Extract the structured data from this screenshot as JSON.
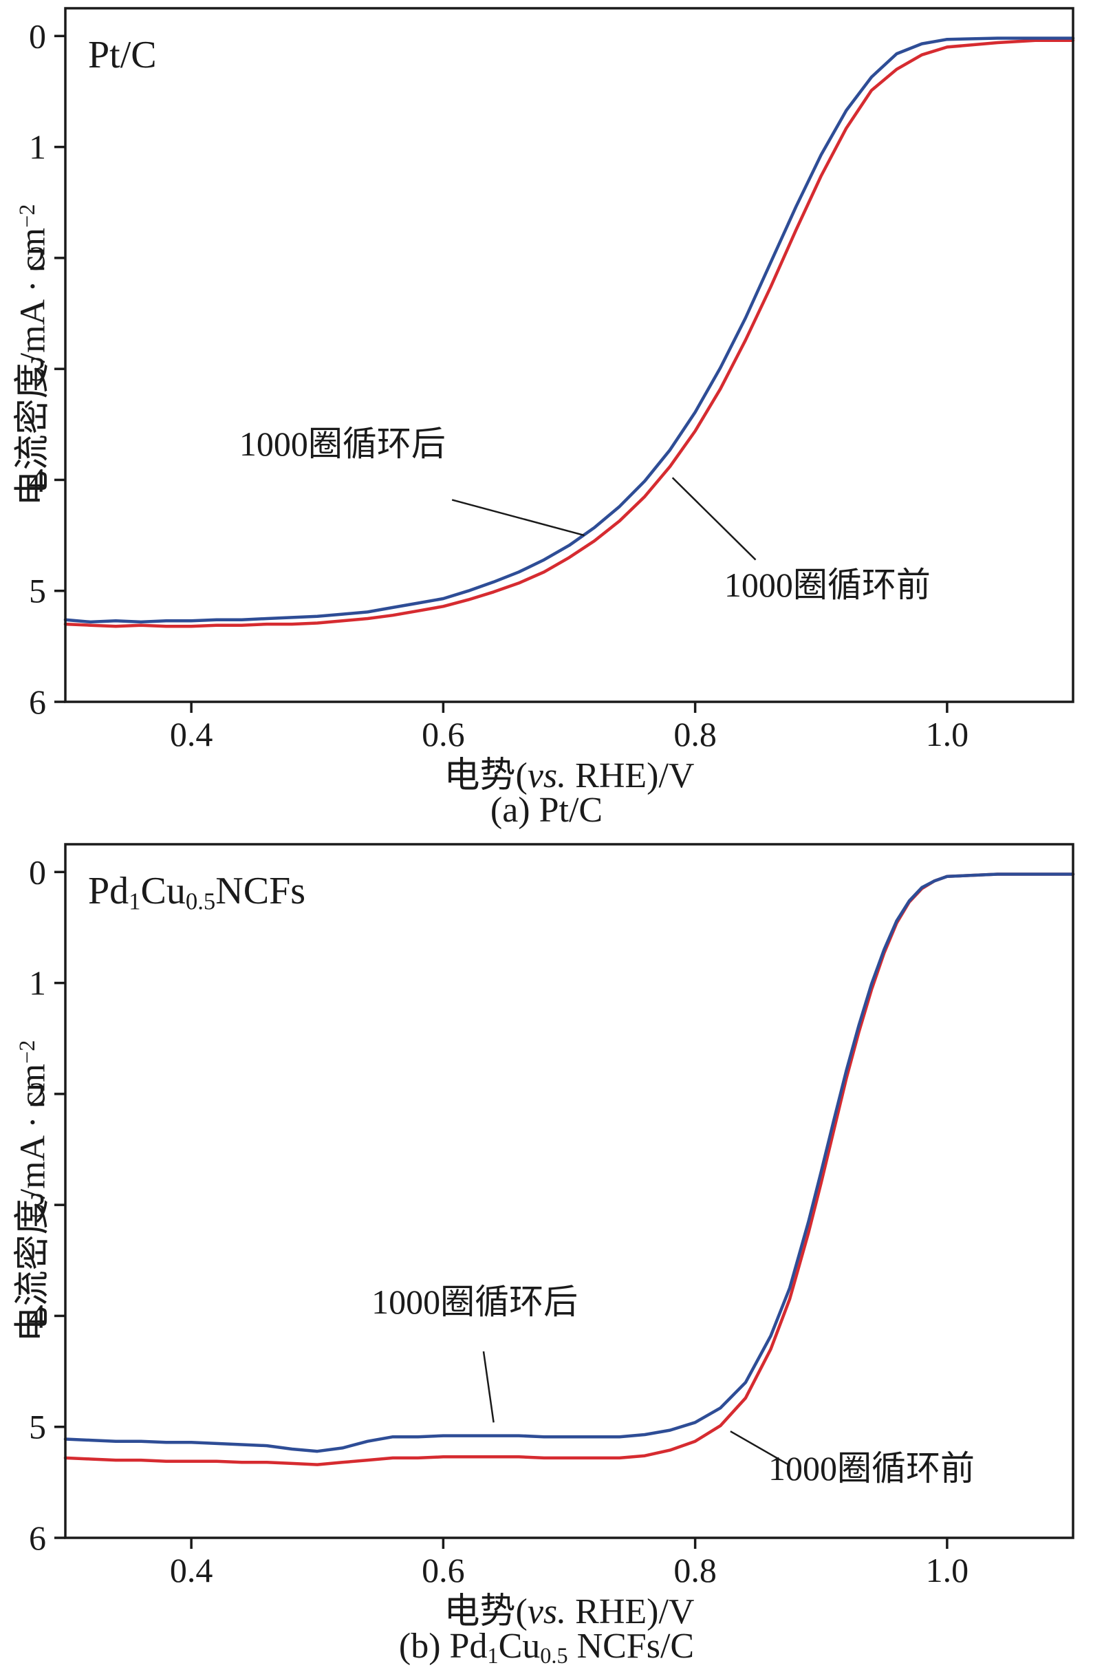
{
  "page": {
    "background": "#ffffff",
    "axis_color": "#1a1a1a"
  },
  "chart_data": [
    {
      "type": "line",
      "key": "pt-c",
      "panel_label": [
        {
          "t": "Pt/C"
        }
      ],
      "caption": [
        {
          "t": "(a) Pt/C"
        }
      ],
      "xlabel": [
        {
          "t": "电势("
        },
        {
          "t": "vs.",
          "italic": true
        },
        {
          "t": " RHE)/V"
        }
      ],
      "ylabel": [
        {
          "t": "电流密度/mA · cm"
        },
        {
          "t": "−2",
          "sup": true
        }
      ],
      "xlim": [
        0.3,
        1.1
      ],
      "ylim": [
        -0.25,
        6.0
      ],
      "y_inverted": true,
      "grid": false,
      "axis_color": "#1a1a1a",
      "xticks": [
        {
          "v": 0.4,
          "label": "0.4"
        },
        {
          "v": 0.6,
          "label": "0.6"
        },
        {
          "v": 0.8,
          "label": "0.8"
        },
        {
          "v": 1.0,
          "label": "1.0"
        }
      ],
      "yticks": [
        {
          "v": 0,
          "label": "0"
        },
        {
          "v": 1,
          "label": "1"
        },
        {
          "v": 2,
          "label": "2"
        },
        {
          "v": 3,
          "label": "3"
        },
        {
          "v": 4,
          "label": "4"
        },
        {
          "v": 5,
          "label": "5"
        },
        {
          "v": 6,
          "label": "6"
        }
      ],
      "series": [
        {
          "key": "before-1000-cycles",
          "name": "1000圈循环前",
          "color": "#d62b30",
          "points": [
            [
              0.3,
              5.3
            ],
            [
              0.32,
              5.31
            ],
            [
              0.34,
              5.32
            ],
            [
              0.36,
              5.31
            ],
            [
              0.38,
              5.32
            ],
            [
              0.4,
              5.32
            ],
            [
              0.42,
              5.31
            ],
            [
              0.44,
              5.31
            ],
            [
              0.46,
              5.3
            ],
            [
              0.48,
              5.3
            ],
            [
              0.5,
              5.29
            ],
            [
              0.52,
              5.27
            ],
            [
              0.54,
              5.25
            ],
            [
              0.56,
              5.22
            ],
            [
              0.58,
              5.18
            ],
            [
              0.6,
              5.14
            ],
            [
              0.62,
              5.08
            ],
            [
              0.64,
              5.01
            ],
            [
              0.66,
              4.93
            ],
            [
              0.68,
              4.83
            ],
            [
              0.7,
              4.7
            ],
            [
              0.72,
              4.55
            ],
            [
              0.74,
              4.37
            ],
            [
              0.76,
              4.15
            ],
            [
              0.78,
              3.88
            ],
            [
              0.8,
              3.56
            ],
            [
              0.82,
              3.18
            ],
            [
              0.84,
              2.74
            ],
            [
              0.86,
              2.26
            ],
            [
              0.88,
              1.75
            ],
            [
              0.9,
              1.26
            ],
            [
              0.92,
              0.83
            ],
            [
              0.94,
              0.49
            ],
            [
              0.96,
              0.3
            ],
            [
              0.98,
              0.17
            ],
            [
              1.0,
              0.1
            ],
            [
              1.04,
              0.06
            ],
            [
              1.07,
              0.04
            ],
            [
              1.1,
              0.04
            ]
          ]
        },
        {
          "key": "after-1000-cycles",
          "name": "1000圈循环后",
          "color": "#2e4d96",
          "points": [
            [
              0.3,
              5.26
            ],
            [
              0.32,
              5.28
            ],
            [
              0.34,
              5.27
            ],
            [
              0.36,
              5.28
            ],
            [
              0.38,
              5.27
            ],
            [
              0.4,
              5.27
            ],
            [
              0.42,
              5.26
            ],
            [
              0.44,
              5.26
            ],
            [
              0.46,
              5.25
            ],
            [
              0.48,
              5.24
            ],
            [
              0.5,
              5.23
            ],
            [
              0.52,
              5.21
            ],
            [
              0.54,
              5.19
            ],
            [
              0.56,
              5.15
            ],
            [
              0.58,
              5.11
            ],
            [
              0.6,
              5.07
            ],
            [
              0.62,
              5.0
            ],
            [
              0.64,
              4.92
            ],
            [
              0.66,
              4.83
            ],
            [
              0.68,
              4.72
            ],
            [
              0.7,
              4.59
            ],
            [
              0.72,
              4.43
            ],
            [
              0.74,
              4.24
            ],
            [
              0.76,
              4.01
            ],
            [
              0.78,
              3.73
            ],
            [
              0.8,
              3.39
            ],
            [
              0.82,
              2.99
            ],
            [
              0.84,
              2.54
            ],
            [
              0.86,
              2.04
            ],
            [
              0.88,
              1.54
            ],
            [
              0.9,
              1.07
            ],
            [
              0.92,
              0.67
            ],
            [
              0.94,
              0.37
            ],
            [
              0.96,
              0.16
            ],
            [
              0.98,
              0.07
            ],
            [
              1.0,
              0.03
            ],
            [
              1.04,
              0.02
            ],
            [
              1.1,
              0.02
            ]
          ]
        }
      ],
      "annotations": [
        {
          "key": "after-1000-cycles",
          "text": "1000圈循环后",
          "text_xy": [
            0.52,
            3.78
          ],
          "line": [
            [
              0.607,
              4.18
            ],
            [
              0.712,
              4.5
            ]
          ]
        },
        {
          "key": "before-1000-cycles",
          "text": "1000圈循环前",
          "text_xy": [
            0.905,
            5.05
          ],
          "line": [
            [
              0.782,
              3.98
            ],
            [
              0.848,
              4.72
            ]
          ]
        }
      ]
    },
    {
      "type": "line",
      "key": "pd1cu05-ncfs",
      "panel_label": [
        {
          "t": "Pd"
        },
        {
          "t": "1",
          "sub": true
        },
        {
          "t": "Cu"
        },
        {
          "t": "0.5",
          "sub": true
        },
        {
          "t": "NCFs"
        }
      ],
      "caption": [
        {
          "t": "(b) Pd"
        },
        {
          "t": "1",
          "sub": true
        },
        {
          "t": "Cu"
        },
        {
          "t": "0.5",
          "sub": true
        },
        {
          "t": " NCFs/C"
        }
      ],
      "xlabel": [
        {
          "t": "电势("
        },
        {
          "t": "vs.",
          "italic": true
        },
        {
          "t": " RHE)/V"
        }
      ],
      "ylabel": [
        {
          "t": "电流密度/mA · cm"
        },
        {
          "t": "−2",
          "sup": true
        }
      ],
      "xlim": [
        0.3,
        1.1
      ],
      "ylim": [
        -0.25,
        6.0
      ],
      "y_inverted": true,
      "grid": false,
      "axis_color": "#1a1a1a",
      "xticks": [
        {
          "v": 0.4,
          "label": "0.4"
        },
        {
          "v": 0.6,
          "label": "0.6"
        },
        {
          "v": 0.8,
          "label": "0.8"
        },
        {
          "v": 1.0,
          "label": "1.0"
        }
      ],
      "yticks": [
        {
          "v": 0,
          "label": "0"
        },
        {
          "v": 1,
          "label": "1"
        },
        {
          "v": 2,
          "label": "2"
        },
        {
          "v": 3,
          "label": "3"
        },
        {
          "v": 4,
          "label": "4"
        },
        {
          "v": 5,
          "label": "5"
        },
        {
          "v": 6,
          "label": "6"
        }
      ],
      "series": [
        {
          "key": "before-1000-cycles",
          "name": "1000圈循环前",
          "color": "#d62b30",
          "points": [
            [
              0.3,
              5.28
            ],
            [
              0.32,
              5.29
            ],
            [
              0.34,
              5.3
            ],
            [
              0.36,
              5.3
            ],
            [
              0.38,
              5.31
            ],
            [
              0.4,
              5.31
            ],
            [
              0.42,
              5.31
            ],
            [
              0.44,
              5.32
            ],
            [
              0.46,
              5.32
            ],
            [
              0.48,
              5.33
            ],
            [
              0.5,
              5.34
            ],
            [
              0.52,
              5.32
            ],
            [
              0.54,
              5.3
            ],
            [
              0.56,
              5.28
            ],
            [
              0.58,
              5.28
            ],
            [
              0.6,
              5.27
            ],
            [
              0.62,
              5.27
            ],
            [
              0.64,
              5.27
            ],
            [
              0.66,
              5.27
            ],
            [
              0.68,
              5.28
            ],
            [
              0.7,
              5.28
            ],
            [
              0.72,
              5.28
            ],
            [
              0.74,
              5.28
            ],
            [
              0.76,
              5.26
            ],
            [
              0.78,
              5.21
            ],
            [
              0.8,
              5.13
            ],
            [
              0.82,
              4.99
            ],
            [
              0.84,
              4.74
            ],
            [
              0.86,
              4.3
            ],
            [
              0.875,
              3.85
            ],
            [
              0.89,
              3.25
            ],
            [
              0.9,
              2.8
            ],
            [
              0.91,
              2.33
            ],
            [
              0.92,
              1.86
            ],
            [
              0.93,
              1.44
            ],
            [
              0.94,
              1.06
            ],
            [
              0.95,
              0.73
            ],
            [
              0.96,
              0.46
            ],
            [
              0.97,
              0.27
            ],
            [
              0.98,
              0.15
            ],
            [
              0.99,
              0.08
            ],
            [
              1.0,
              0.04
            ],
            [
              1.04,
              0.02
            ],
            [
              1.1,
              0.02
            ]
          ]
        },
        {
          "key": "after-1000-cycles",
          "name": "1000圈循环后",
          "color": "#2e4d96",
          "points": [
            [
              0.3,
              5.11
            ],
            [
              0.32,
              5.12
            ],
            [
              0.34,
              5.13
            ],
            [
              0.36,
              5.13
            ],
            [
              0.38,
              5.14
            ],
            [
              0.4,
              5.14
            ],
            [
              0.42,
              5.15
            ],
            [
              0.44,
              5.16
            ],
            [
              0.46,
              5.17
            ],
            [
              0.48,
              5.2
            ],
            [
              0.5,
              5.22
            ],
            [
              0.52,
              5.19
            ],
            [
              0.54,
              5.13
            ],
            [
              0.56,
              5.09
            ],
            [
              0.58,
              5.09
            ],
            [
              0.6,
              5.08
            ],
            [
              0.62,
              5.08
            ],
            [
              0.64,
              5.08
            ],
            [
              0.66,
              5.08
            ],
            [
              0.68,
              5.09
            ],
            [
              0.7,
              5.09
            ],
            [
              0.72,
              5.09
            ],
            [
              0.74,
              5.09
            ],
            [
              0.76,
              5.07
            ],
            [
              0.78,
              5.03
            ],
            [
              0.8,
              4.96
            ],
            [
              0.82,
              4.83
            ],
            [
              0.84,
              4.6
            ],
            [
              0.86,
              4.18
            ],
            [
              0.875,
              3.75
            ],
            [
              0.89,
              3.15
            ],
            [
              0.9,
              2.7
            ],
            [
              0.91,
              2.24
            ],
            [
              0.92,
              1.79
            ],
            [
              0.93,
              1.38
            ],
            [
              0.94,
              1.01
            ],
            [
              0.95,
              0.7
            ],
            [
              0.96,
              0.44
            ],
            [
              0.97,
              0.26
            ],
            [
              0.98,
              0.14
            ],
            [
              0.99,
              0.08
            ],
            [
              1.0,
              0.04
            ],
            [
              1.04,
              0.02
            ],
            [
              1.1,
              0.02
            ]
          ]
        }
      ],
      "annotations": [
        {
          "key": "after-1000-cycles",
          "text": "1000圈循环后",
          "text_xy": [
            0.625,
            3.98
          ],
          "line": [
            [
              0.632,
              4.32
            ],
            [
              0.64,
              4.96
            ]
          ]
        },
        {
          "key": "before-1000-cycles",
          "text": "1000圈循环前",
          "text_xy": [
            0.94,
            5.48
          ],
          "line": [
            [
              0.828,
              5.04
            ],
            [
              0.874,
              5.34
            ]
          ]
        }
      ]
    }
  ]
}
